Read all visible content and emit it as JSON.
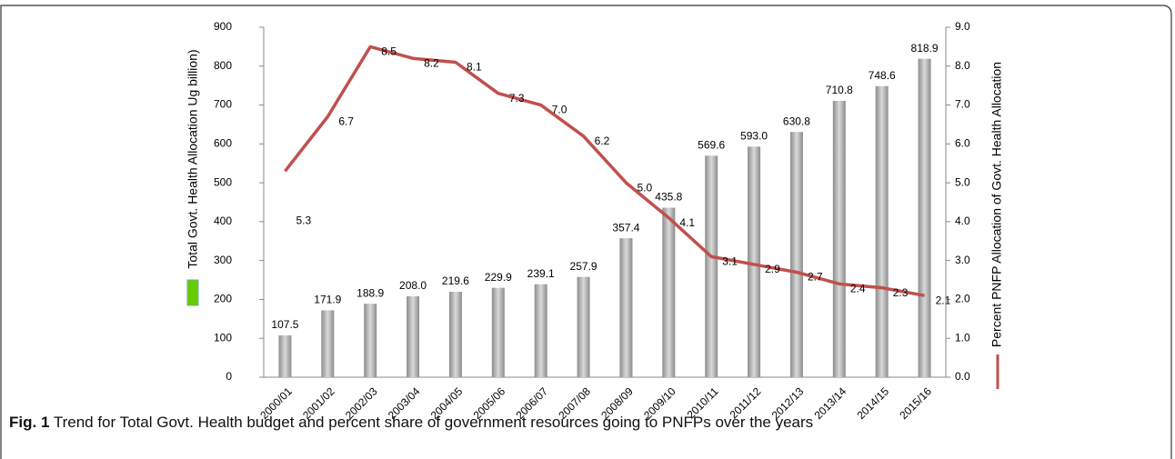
{
  "chart_data": {
    "type": "bar_line",
    "caption_label": "Fig. 1",
    "caption": "Trend for Total Govt. Health budget and percent share of government resources going to PNFPs over the years",
    "ylabel": "Total Govt. Health Allocation Ug billion)",
    "y2label": "Percent PNFP Allocation of Govt. Health Allocation",
    "categories": [
      "2000/01",
      "2001/02",
      "2002/03",
      "2003/04",
      "2004/05",
      "2005/06",
      "2006/07",
      "2007/08",
      "2008/09",
      "2009/10",
      "2010/11",
      "2011/12",
      "2012/13",
      "2013/14",
      "2014/15",
      "2015/16"
    ],
    "series": [
      {
        "type": "bar",
        "color": "#a6a6a6",
        "legend_color": "#66cc00",
        "values": [
          107.5,
          171.9,
          188.9,
          208.0,
          219.6,
          229.9,
          239.1,
          257.9,
          357.4,
          435.8,
          569.6,
          593.0,
          630.8,
          710.8,
          748.6,
          818.9
        ],
        "value_labels": [
          "107.5",
          "171.9",
          "188.9",
          "208.0",
          "219.6",
          "229.9",
          "239.1",
          "257.9",
          "357.4",
          "435.8",
          "569.6",
          "593.0",
          "630.8",
          "710.8",
          "748.6",
          "818.9"
        ]
      },
      {
        "type": "line",
        "axis": "y2",
        "color": "#c0504d",
        "values": [
          5.3,
          6.7,
          8.5,
          8.2,
          8.1,
          7.3,
          7.0,
          6.2,
          5.0,
          4.1,
          3.1,
          2.9,
          2.7,
          2.4,
          2.3,
          2.1
        ],
        "value_labels": [
          "5.3",
          "6.7",
          "8.5",
          "8.2",
          "8.1",
          "7.3",
          "7.0",
          "6.2",
          "5.0",
          "4.1",
          "3.1",
          "2.9",
          "2.7",
          "2.4",
          "2.3",
          "2.1"
        ]
      }
    ],
    "ylim": [
      0,
      900
    ],
    "yticks": [
      0,
      100,
      200,
      300,
      400,
      500,
      600,
      700,
      800,
      900
    ],
    "y2lim": [
      0,
      9
    ],
    "y2ticks": [
      {
        "value": 0,
        "label": "0.0"
      },
      {
        "value": 1,
        "label": "1.0"
      },
      {
        "value": 2,
        "label": "2.0"
      },
      {
        "value": 3,
        "label": "3.0"
      },
      {
        "value": 4,
        "label": "4.0"
      },
      {
        "value": 5,
        "label": "5.0"
      },
      {
        "value": 6,
        "label": "6.0"
      },
      {
        "value": 7,
        "label": "7.0"
      },
      {
        "value": 8,
        "label": "8.0"
      },
      {
        "value": 9,
        "label": "9.0"
      }
    ]
  }
}
